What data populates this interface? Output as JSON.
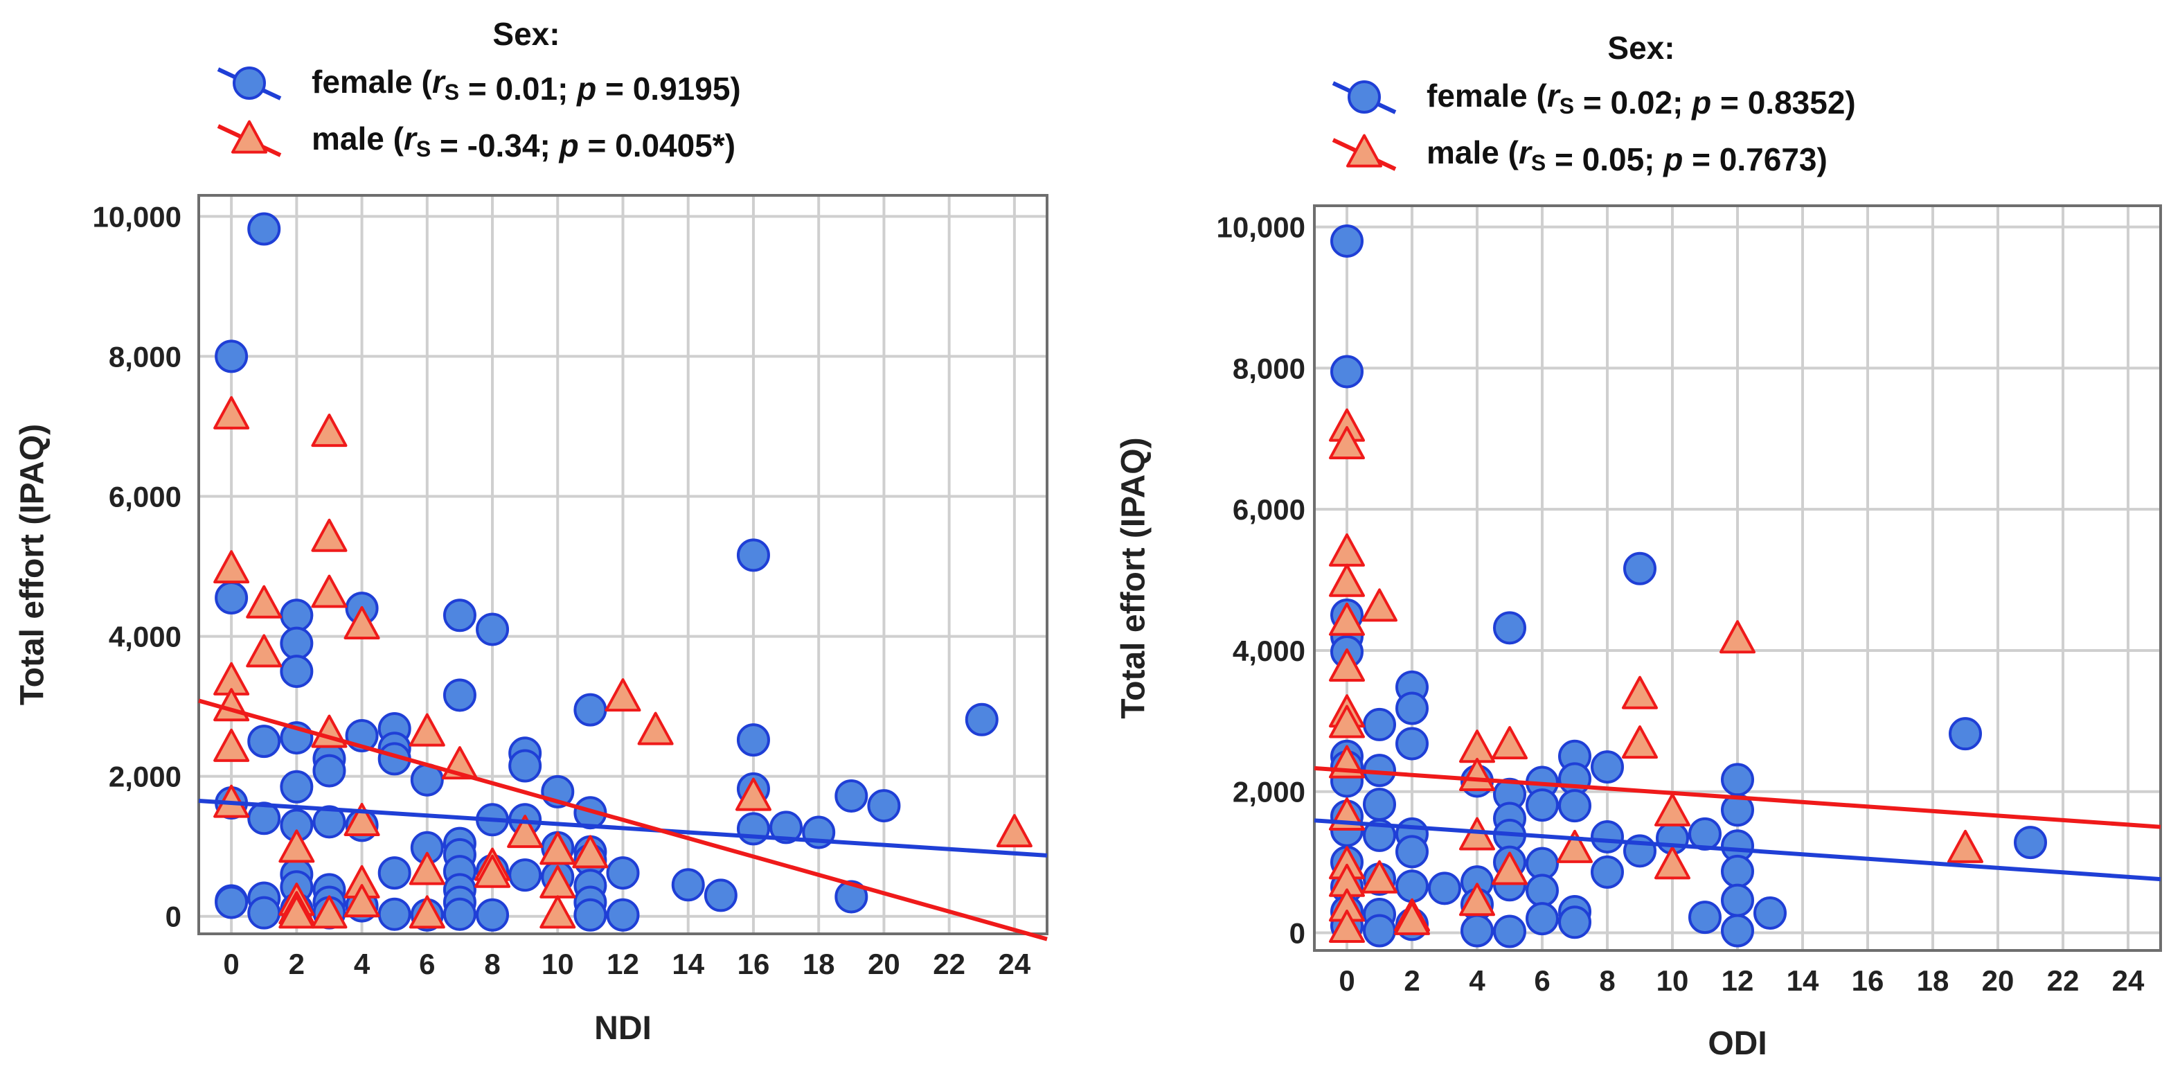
{
  "chart_data": [
    {
      "type": "scatter",
      "legend_title": "Sex:",
      "xlabel": "NDI",
      "ylabel": "Total effort (IPAQ)",
      "xlim": [
        -1,
        25
      ],
      "ylim": [
        -250,
        10300
      ],
      "xticks": [
        "0",
        "2",
        "4",
        "6",
        "8",
        "10",
        "12",
        "14",
        "16",
        "18",
        "20",
        "22",
        "24"
      ],
      "yticks": [
        "0",
        "2,000",
        "4,000",
        "6,000",
        "8,000",
        "10,000"
      ],
      "series": [
        {
          "name": "female",
          "r": "0.01",
          "p": "0.9195",
          "color": "#1f3fd6",
          "fill": "#4f86e0",
          "marker": "circle",
          "fit": {
            "intercept": 1620,
            "slope": -30
          },
          "points": [
            [
              0,
              8000
            ],
            [
              0,
              4550
            ],
            [
              0,
              1620
            ],
            [
              0,
              220
            ],
            [
              0,
              200
            ],
            [
              1,
              9820
            ],
            [
              1,
              2500
            ],
            [
              1,
              1400
            ],
            [
              1,
              260
            ],
            [
              1,
              50
            ],
            [
              2,
              4300
            ],
            [
              2,
              3900
            ],
            [
              2,
              3500
            ],
            [
              2,
              2550
            ],
            [
              2,
              1850
            ],
            [
              2,
              1300
            ],
            [
              2,
              600
            ],
            [
              2,
              420
            ],
            [
              2,
              100
            ],
            [
              3,
              2250
            ],
            [
              3,
              2080
            ],
            [
              3,
              1350
            ],
            [
              3,
              380
            ],
            [
              3,
              200
            ],
            [
              3,
              50
            ],
            [
              4,
              4400
            ],
            [
              4,
              2580
            ],
            [
              4,
              1300
            ],
            [
              4,
              150
            ],
            [
              5,
              2680
            ],
            [
              5,
              2400
            ],
            [
              5,
              2250
            ],
            [
              5,
              620
            ],
            [
              5,
              30
            ],
            [
              6,
              1950
            ],
            [
              6,
              980
            ],
            [
              6,
              20
            ],
            [
              7,
              4300
            ],
            [
              7,
              3160
            ],
            [
              7,
              1040
            ],
            [
              7,
              880
            ],
            [
              7,
              640
            ],
            [
              7,
              380
            ],
            [
              7,
              200
            ],
            [
              7,
              30
            ],
            [
              8,
              4100
            ],
            [
              8,
              1380
            ],
            [
              8,
              650
            ],
            [
              8,
              20
            ],
            [
              9,
              2330
            ],
            [
              9,
              2150
            ],
            [
              9,
              1380
            ],
            [
              9,
              590
            ],
            [
              10,
              1780
            ],
            [
              10,
              980
            ],
            [
              10,
              560
            ],
            [
              11,
              2950
            ],
            [
              11,
              1480
            ],
            [
              11,
              920
            ],
            [
              11,
              800
            ],
            [
              11,
              440
            ],
            [
              11,
              200
            ],
            [
              11,
              20
            ],
            [
              12,
              620
            ],
            [
              12,
              20
            ],
            [
              14,
              450
            ],
            [
              15,
              300
            ],
            [
              16,
              5160
            ],
            [
              16,
              2520
            ],
            [
              16,
              1820
            ],
            [
              16,
              1250
            ],
            [
              17,
              1270
            ],
            [
              18,
              1200
            ],
            [
              19,
              1720
            ],
            [
              19,
              280
            ],
            [
              20,
              1580
            ],
            [
              23,
              2810
            ]
          ]
        },
        {
          "name": "male",
          "r": "-0.34",
          "p": "0.0405*",
          "color": "#ef1a1a",
          "fill": "#f2a07a",
          "marker": "triangle",
          "fit": {
            "intercept": 2950,
            "slope": -131
          },
          "points": [
            [
              0,
              7150
            ],
            [
              0,
              4950
            ],
            [
              0,
              3350
            ],
            [
              0,
              2980
            ],
            [
              0,
              2400
            ],
            [
              0,
              1600
            ],
            [
              1,
              4450
            ],
            [
              1,
              3750
            ],
            [
              2,
              960
            ],
            [
              2,
              200
            ],
            [
              2,
              80
            ],
            [
              2,
              20
            ],
            [
              3,
              6900
            ],
            [
              3,
              5400
            ],
            [
              3,
              4600
            ],
            [
              3,
              2600
            ],
            [
              3,
              20
            ],
            [
              4,
              4150
            ],
            [
              4,
              1340
            ],
            [
              4,
              450
            ],
            [
              4,
              180
            ],
            [
              6,
              2620
            ],
            [
              6,
              640
            ],
            [
              6,
              20
            ],
            [
              7,
              2150
            ],
            [
              8,
              700
            ],
            [
              8,
              600
            ],
            [
              9,
              1170
            ],
            [
              10,
              930
            ],
            [
              10,
              450
            ],
            [
              10,
              20
            ],
            [
              11,
              880
            ],
            [
              12,
              3120
            ],
            [
              13,
              2640
            ],
            [
              16,
              1700
            ],
            [
              24,
              1180
            ]
          ]
        }
      ]
    },
    {
      "type": "scatter",
      "legend_title": "Sex:",
      "xlabel": "ODI",
      "ylabel": "Total effort (IPAQ)",
      "xlim": [
        -1,
        25
      ],
      "ylim": [
        -250,
        10300
      ],
      "xticks": [
        "0",
        "2",
        "4",
        "6",
        "8",
        "10",
        "12",
        "14",
        "16",
        "18",
        "20",
        "22",
        "24"
      ],
      "yticks": [
        "0",
        "2,000",
        "4,000",
        "6,000",
        "8,000",
        "10,000"
      ],
      "series": [
        {
          "name": "female",
          "r": "0.02",
          "p": "0.8352",
          "color": "#1f3fd6",
          "fill": "#4f86e0",
          "marker": "circle",
          "fit": {
            "intercept": 1560,
            "slope": -32
          },
          "points": [
            [
              0,
              9800
            ],
            [
              0,
              7950
            ],
            [
              0,
              4500
            ],
            [
              0,
              4200
            ],
            [
              0,
              3980
            ],
            [
              0,
              2500
            ],
            [
              0,
              2350
            ],
            [
              0,
              2150
            ],
            [
              0,
              1650
            ],
            [
              0,
              1450
            ],
            [
              0,
              1000
            ],
            [
              0,
              650
            ],
            [
              0,
              300
            ],
            [
              0,
              100
            ],
            [
              1,
              2950
            ],
            [
              1,
              2300
            ],
            [
              1,
              1820
            ],
            [
              1,
              1380
            ],
            [
              1,
              760
            ],
            [
              1,
              260
            ],
            [
              1,
              30
            ],
            [
              2,
              3480
            ],
            [
              2,
              3180
            ],
            [
              2,
              2680
            ],
            [
              2,
              1400
            ],
            [
              2,
              1150
            ],
            [
              2,
              660
            ],
            [
              2,
              120
            ],
            [
              3,
              630
            ],
            [
              4,
              2150
            ],
            [
              4,
              720
            ],
            [
              4,
              400
            ],
            [
              4,
              30
            ],
            [
              5,
              4320
            ],
            [
              5,
              1960
            ],
            [
              5,
              1620
            ],
            [
              5,
              1380
            ],
            [
              5,
              1000
            ],
            [
              5,
              680
            ],
            [
              5,
              20
            ],
            [
              6,
              2130
            ],
            [
              6,
              1810
            ],
            [
              6,
              980
            ],
            [
              6,
              600
            ],
            [
              6,
              200
            ],
            [
              7,
              2500
            ],
            [
              7,
              2180
            ],
            [
              7,
              1800
            ],
            [
              7,
              300
            ],
            [
              7,
              150
            ],
            [
              8,
              2350
            ],
            [
              8,
              1360
            ],
            [
              8,
              860
            ],
            [
              9,
              5160
            ],
            [
              9,
              1160
            ],
            [
              10,
              1340
            ],
            [
              11,
              1400
            ],
            [
              11,
              220
            ],
            [
              12,
              2170
            ],
            [
              12,
              1740
            ],
            [
              12,
              1230
            ],
            [
              12,
              870
            ],
            [
              12,
              460
            ],
            [
              12,
              30
            ],
            [
              13,
              280
            ],
            [
              19,
              2820
            ],
            [
              21,
              1280
            ]
          ]
        },
        {
          "name": "male",
          "r": "0.05",
          "p": "0.7673",
          "color": "#ef1a1a",
          "fill": "#f2a07a",
          "marker": "triangle",
          "fit": {
            "intercept": 2300,
            "slope": -32
          },
          "points": [
            [
              0,
              7150
            ],
            [
              0,
              6900
            ],
            [
              0,
              5380
            ],
            [
              0,
              4950
            ],
            [
              0,
              4400
            ],
            [
              0,
              3750
            ],
            [
              0,
              3100
            ],
            [
              0,
              2950
            ],
            [
              0,
              2380
            ],
            [
              0,
              1640
            ],
            [
              0,
              950
            ],
            [
              0,
              700
            ],
            [
              0,
              350
            ],
            [
              0,
              50
            ],
            [
              1,
              4600
            ],
            [
              1,
              750
            ],
            [
              2,
              210
            ],
            [
              2,
              160
            ],
            [
              4,
              2600
            ],
            [
              4,
              2200
            ],
            [
              4,
              1360
            ],
            [
              4,
              430
            ],
            [
              5,
              2650
            ],
            [
              5,
              870
            ],
            [
              7,
              1180
            ],
            [
              9,
              3360
            ],
            [
              9,
              2660
            ],
            [
              10,
              1700
            ],
            [
              10,
              950
            ],
            [
              12,
              4150
            ],
            [
              19,
              1180
            ]
          ]
        }
      ]
    }
  ]
}
